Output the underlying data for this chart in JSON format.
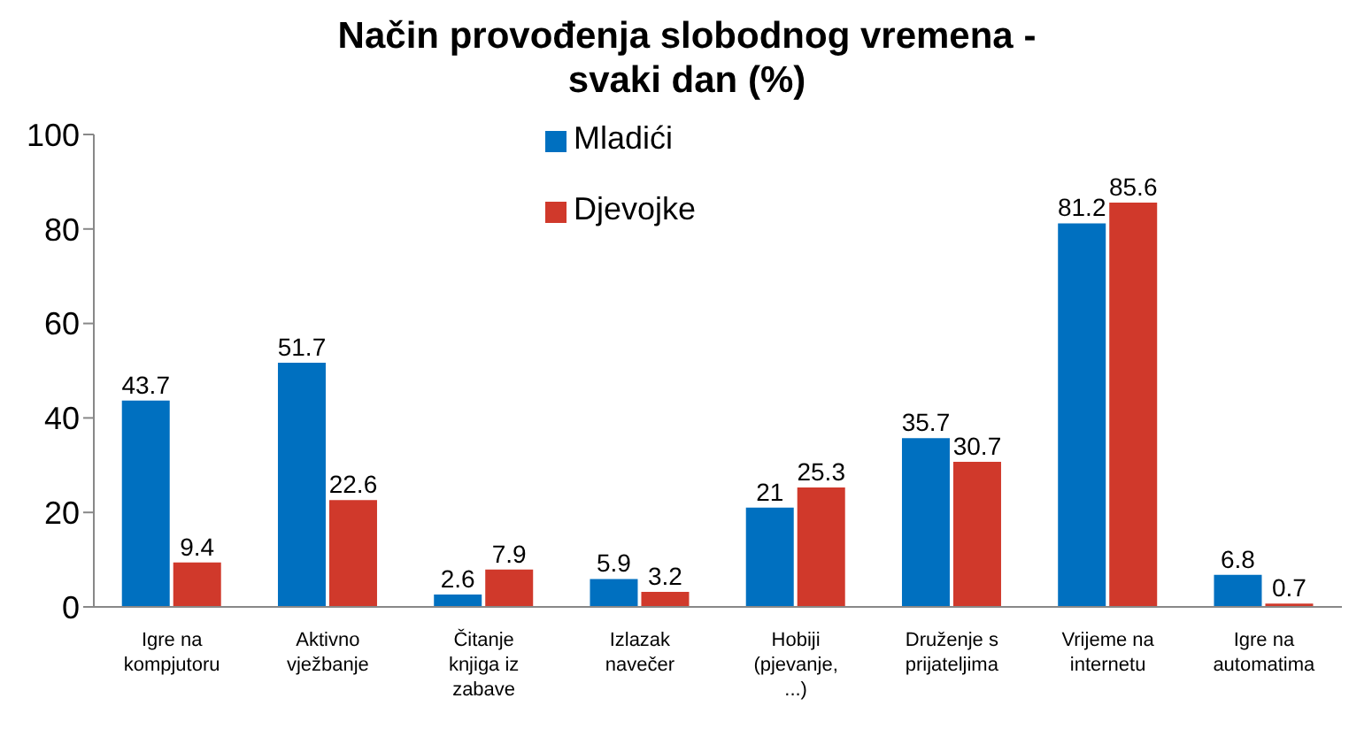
{
  "chart_data": {
    "type": "bar",
    "title": "Način provođenja slobodnog vremena - svaki dan (%)",
    "categories": [
      "Igre na kompjutoru",
      "Aktivno vježbanje",
      "Čitanje knjiga iz zabave",
      "Izlazak navečer",
      "Hobiji (pjevanje, ...)",
      "Druženje s prijateljima",
      "Vrijeme na internetu",
      "Igre na automatima"
    ],
    "series": [
      {
        "name": "Mladići",
        "color": "#0070c0",
        "values": [
          43.7,
          51.7,
          2.6,
          5.9,
          21,
          35.7,
          81.2,
          6.8
        ]
      },
      {
        "name": "Djevojke",
        "color": "#d0392b",
        "values": [
          9.4,
          22.6,
          7.9,
          3.2,
          25.3,
          30.7,
          85.6,
          0.7
        ]
      }
    ],
    "ylim": [
      0,
      100
    ],
    "yticks": [
      0,
      20,
      40,
      60,
      80,
      100
    ],
    "grid": false,
    "legend": "top",
    "data_labels": true
  }
}
